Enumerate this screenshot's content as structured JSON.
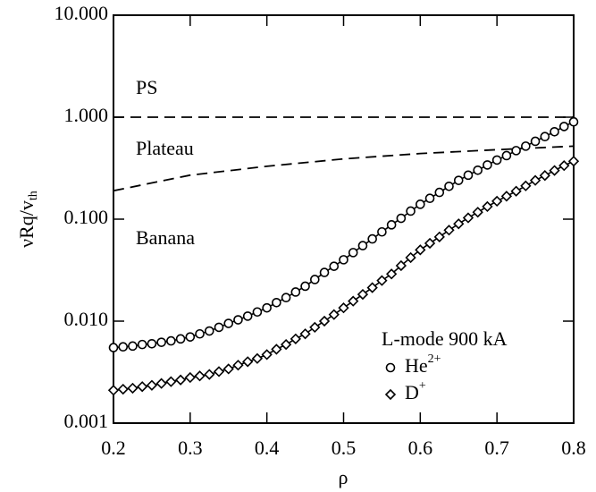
{
  "chart_data": {
    "type": "line",
    "xlabel": "ρ",
    "ylabel": {
      "main": "νRq/v",
      "sub": "th"
    },
    "log_y": true,
    "xlim": [
      0.2,
      0.8
    ],
    "xticks": [
      0.2,
      0.3,
      0.4,
      0.5,
      0.6,
      0.7,
      0.8
    ],
    "ylim": [
      0.001,
      10
    ],
    "yticks": [
      {
        "value": 0.001,
        "label": "0.001"
      },
      {
        "value": 0.01,
        "label": "0.010"
      },
      {
        "value": 0.1,
        "label": "0.100"
      },
      {
        "value": 1,
        "label": "1.000"
      },
      {
        "value": 10,
        "label": "10.000"
      }
    ],
    "annotations": [
      "PS",
      "Plateau",
      "Banana"
    ],
    "legend_title": "L-mode 900 kA",
    "legend_corner": "lower right",
    "boundaries": [
      {
        "x": [
          0.2,
          0.8
        ],
        "values": [
          1,
          1
        ]
      },
      {
        "x": [
          0.2,
          0.3,
          0.4,
          0.5,
          0.6,
          0.7,
          0.8
        ],
        "values": [
          0.19,
          0.27,
          0.33,
          0.39,
          0.44,
          0.48,
          0.52
        ]
      }
    ],
    "x": [
      0.2,
      0.2125,
      0.225,
      0.2375,
      0.25,
      0.2625,
      0.275,
      0.2875,
      0.3,
      0.3125,
      0.325,
      0.3375,
      0.35,
      0.3625,
      0.375,
      0.3875,
      0.4,
      0.4125,
      0.425,
      0.4375,
      0.45,
      0.4625,
      0.475,
      0.4875,
      0.5,
      0.5125,
      0.525,
      0.5375,
      0.55,
      0.5625,
      0.575,
      0.5875,
      0.6,
      0.6125,
      0.625,
      0.6375,
      0.65,
      0.6625,
      0.675,
      0.6875,
      0.7,
      0.7125,
      0.725,
      0.7375,
      0.75,
      0.7625,
      0.775,
      0.7875,
      0.8
    ],
    "series": [
      {
        "name": {
          "main": "He",
          "sup": "2+"
        },
        "marker": "circle",
        "color": "#000000",
        "values": [
          0.0055,
          0.0056,
          0.0057,
          0.0059,
          0.006,
          0.0062,
          0.0064,
          0.0067,
          0.007,
          0.0075,
          0.008,
          0.0087,
          0.0095,
          0.0103,
          0.0112,
          0.0123,
          0.0135,
          0.0152,
          0.017,
          0.0193,
          0.022,
          0.0256,
          0.03,
          0.0345,
          0.04,
          0.047,
          0.055,
          0.064,
          0.075,
          0.088,
          0.102,
          0.12,
          0.14,
          0.16,
          0.183,
          0.21,
          0.24,
          0.27,
          0.302,
          0.34,
          0.38,
          0.42,
          0.47,
          0.52,
          0.58,
          0.645,
          0.72,
          0.81,
          0.9
        ]
      },
      {
        "name": {
          "main": "D",
          "sup": "+"
        },
        "marker": "diamond",
        "color": "#000000",
        "values": [
          0.0021,
          0.00215,
          0.0022,
          0.00228,
          0.00235,
          0.00245,
          0.00255,
          0.00265,
          0.0028,
          0.0029,
          0.003,
          0.0032,
          0.0034,
          0.0037,
          0.004,
          0.0043,
          0.0047,
          0.0053,
          0.0059,
          0.0067,
          0.0075,
          0.0087,
          0.01,
          0.0116,
          0.0135,
          0.0157,
          0.0183,
          0.0213,
          0.025,
          0.029,
          0.035,
          0.042,
          0.05,
          0.058,
          0.067,
          0.078,
          0.09,
          0.103,
          0.117,
          0.133,
          0.15,
          0.168,
          0.188,
          0.212,
          0.24,
          0.268,
          0.3,
          0.335,
          0.37
        ]
      }
    ]
  }
}
